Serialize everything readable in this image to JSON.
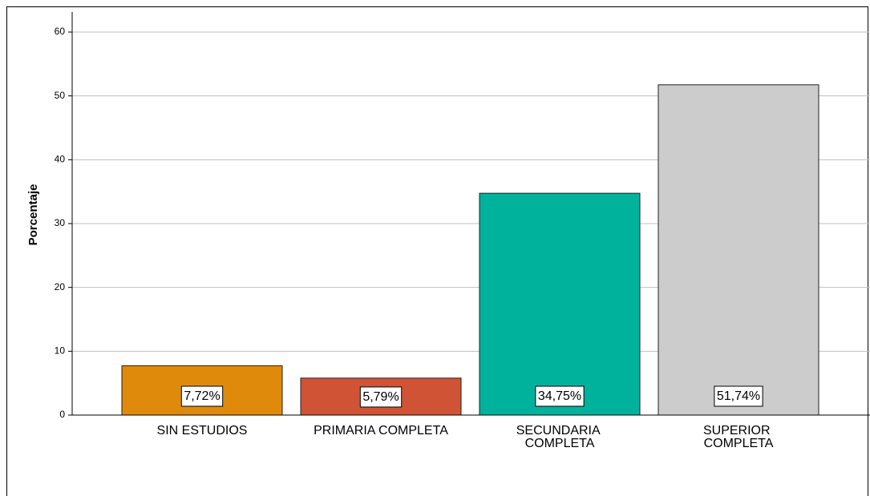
{
  "chart_data": {
    "type": "bar",
    "y_label": "Porcentaje",
    "categories": [
      "SIN ESTUDIOS",
      "PRIMARIA COMPLETA",
      "SECUNDARIA\nCOMPLETA",
      "SUPERIOR\nCOMPLETA"
    ],
    "values": [
      7.72,
      5.79,
      34.75,
      51.74
    ],
    "value_labels": [
      "7,72%",
      "5,79%",
      "34,75%",
      "51,74%"
    ],
    "colors": [
      "#e08a0c",
      "#d05336",
      "#00b29c",
      "#cccccc"
    ],
    "ylim": [
      0,
      63
    ],
    "yticks": [
      0,
      10,
      20,
      30,
      40,
      50,
      60
    ],
    "grid": true
  }
}
